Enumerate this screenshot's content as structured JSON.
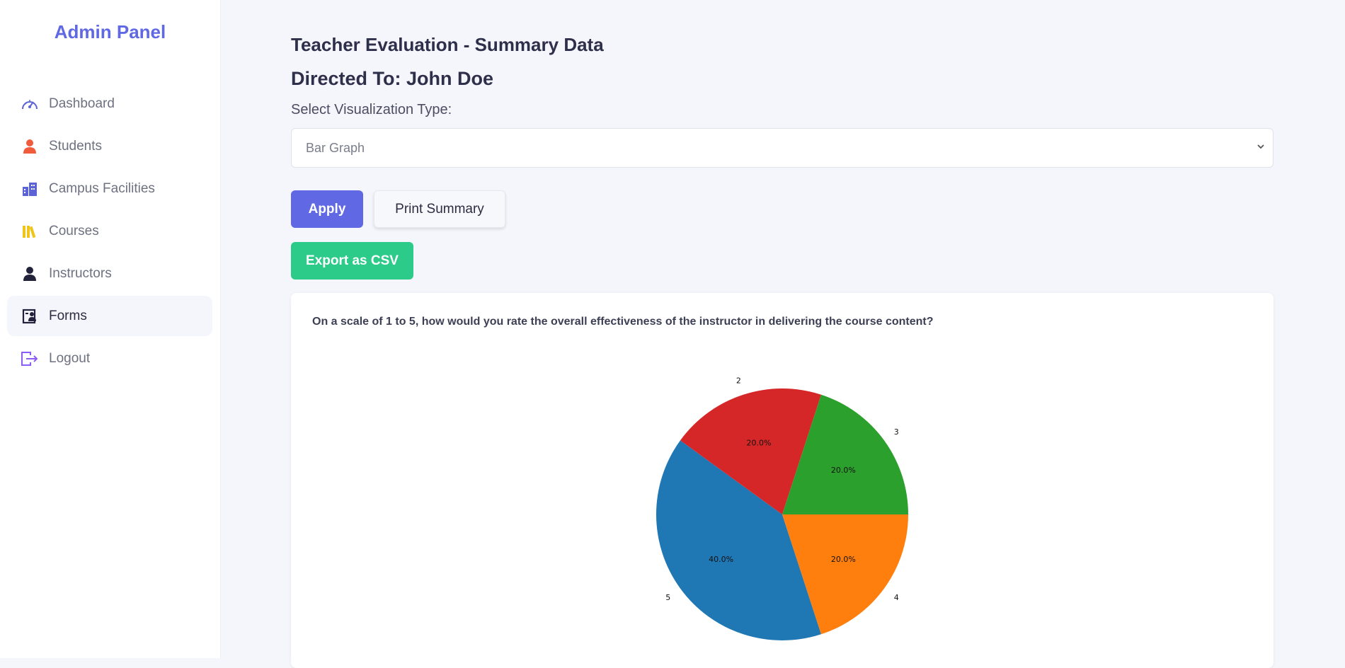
{
  "sidebar": {
    "brand": "Admin Panel",
    "items": [
      {
        "label": "Dashboard",
        "icon": "gauge-icon"
      },
      {
        "label": "Students",
        "icon": "person-icon"
      },
      {
        "label": "Campus Facilities",
        "icon": "building-icon"
      },
      {
        "label": "Courses",
        "icon": "books-icon"
      },
      {
        "label": "Instructors",
        "icon": "person-icon"
      },
      {
        "label": "Forms",
        "icon": "id-card-icon"
      },
      {
        "label": "Logout",
        "icon": "logout-icon"
      }
    ],
    "active": "Forms"
  },
  "main": {
    "title": "Teacher Evaluation - Summary Data",
    "directed_to": "Directed To: John Doe",
    "select_label": "Select Visualization Type:",
    "select_value": "Bar Graph",
    "apply_label": "Apply",
    "print_label": "Print Summary",
    "export_label": "Export as CSV",
    "question": "On a scale of 1 to 5, how would you rate the overall effectiveness of the instructor in delivering the course content?"
  },
  "colors": {
    "accent": "#6069e3",
    "export": "#2dcb8a",
    "students_icon": "#ef5b3b",
    "courses_icon": "#f0c419"
  },
  "chart_data": {
    "type": "pie",
    "labels": [
      "5",
      "2",
      "3",
      "4"
    ],
    "values": [
      40.0,
      20.0,
      20.0,
      20.0
    ],
    "percent_labels": [
      "40.0%",
      "20.0%",
      "20.0%",
      "20.0%"
    ],
    "colors": [
      "#1f77b4",
      "#d62728",
      "#2ca02c",
      "#ff7f0e"
    ]
  }
}
